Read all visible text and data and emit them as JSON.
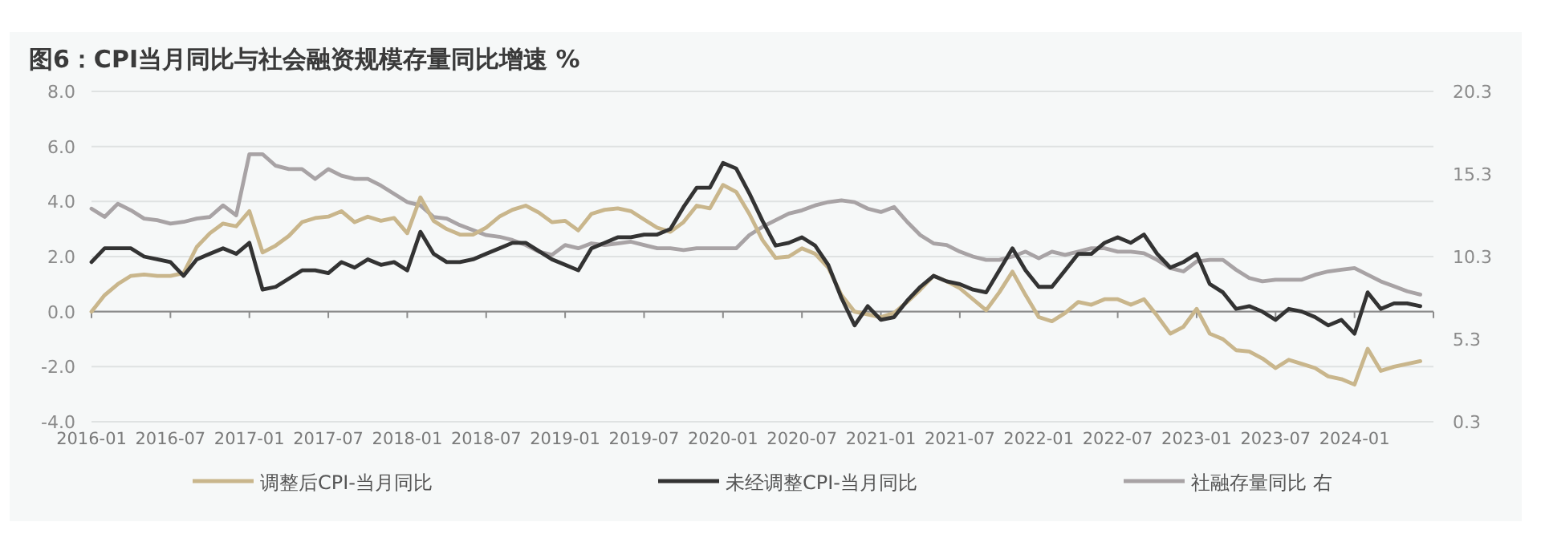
{
  "chart_data": {
    "type": "line",
    "title": "图6：CPI当月同比与社会融资规模存量同比增速 %",
    "x": [
      "2016-01",
      "2016-02",
      "2016-03",
      "2016-04",
      "2016-05",
      "2016-06",
      "2016-07",
      "2016-08",
      "2016-09",
      "2016-10",
      "2016-11",
      "2016-12",
      "2017-01",
      "2017-02",
      "2017-03",
      "2017-04",
      "2017-05",
      "2017-06",
      "2017-07",
      "2017-08",
      "2017-09",
      "2017-10",
      "2017-11",
      "2017-12",
      "2018-01",
      "2018-02",
      "2018-03",
      "2018-04",
      "2018-05",
      "2018-06",
      "2018-07",
      "2018-08",
      "2018-09",
      "2018-10",
      "2018-11",
      "2018-12",
      "2019-01",
      "2019-02",
      "2019-03",
      "2019-04",
      "2019-05",
      "2019-06",
      "2019-07",
      "2019-08",
      "2019-09",
      "2019-10",
      "2019-11",
      "2019-12",
      "2020-01",
      "2020-02",
      "2020-03",
      "2020-04",
      "2020-05",
      "2020-06",
      "2020-07",
      "2020-08",
      "2020-09",
      "2020-10",
      "2020-11",
      "2020-12",
      "2021-01",
      "2021-02",
      "2021-03",
      "2021-04",
      "2021-05",
      "2021-06",
      "2021-07",
      "2021-08",
      "2021-09",
      "2021-10",
      "2021-11",
      "2021-12",
      "2022-01",
      "2022-02",
      "2022-03",
      "2022-04",
      "2022-05",
      "2022-06",
      "2022-07",
      "2022-08",
      "2022-09",
      "2022-10",
      "2022-11",
      "2022-12",
      "2023-01",
      "2023-02",
      "2023-03",
      "2023-04",
      "2023-05",
      "2023-06",
      "2023-07",
      "2023-08",
      "2023-09",
      "2023-10",
      "2023-11",
      "2023-12",
      "2024-01",
      "2024-02",
      "2024-03",
      "2024-04",
      "2024-05",
      "2024-06"
    ],
    "series": [
      {
        "name": "调整后CPI-当月同比",
        "color": "#c9b68c",
        "values": [
          0.0,
          0.6,
          1.0,
          1.3,
          1.35,
          1.3,
          1.3,
          1.4,
          2.35,
          2.85,
          3.2,
          3.1,
          3.65,
          2.15,
          2.4,
          2.75,
          3.25,
          3.4,
          3.45,
          3.65,
          3.25,
          3.45,
          3.3,
          3.4,
          2.85,
          4.15,
          3.3,
          3.0,
          2.8,
          2.8,
          3.05,
          3.45,
          3.7,
          3.85,
          3.6,
          3.25,
          3.3,
          2.95,
          3.55,
          3.7,
          3.75,
          3.65,
          3.35,
          3.05,
          2.9,
          3.25,
          3.85,
          3.75,
          4.6,
          4.35,
          3.55,
          2.6,
          1.95,
          2.0,
          2.3,
          2.1,
          1.6,
          0.6,
          0.0,
          -0.1,
          -0.2,
          -0.05,
          0.35,
          0.8,
          1.3,
          1.1,
          0.85,
          0.45,
          0.05,
          0.7,
          1.45,
          0.6,
          -0.2,
          -0.35,
          -0.05,
          0.35,
          0.25,
          0.45,
          0.45,
          0.25,
          0.45,
          -0.15,
          -0.8,
          -0.55,
          0.1,
          -0.8,
          -1.0,
          -1.4,
          -1.45,
          -1.7,
          -2.05,
          -1.75,
          -1.9,
          -2.05,
          -2.35,
          -2.45,
          -2.65,
          -1.35,
          -2.15,
          -2.0,
          -1.9,
          -1.8
        ]
      },
      {
        "name": "未经调整CPI-当月同比",
        "color": "#333333",
        "values": [
          1.8,
          2.3,
          2.3,
          2.3,
          2.0,
          1.9,
          1.8,
          1.3,
          1.9,
          2.1,
          2.3,
          2.1,
          2.5,
          0.8,
          0.9,
          1.2,
          1.5,
          1.5,
          1.4,
          1.8,
          1.6,
          1.9,
          1.7,
          1.8,
          1.5,
          2.9,
          2.1,
          1.8,
          1.8,
          1.9,
          2.1,
          2.3,
          2.5,
          2.5,
          2.2,
          1.9,
          1.7,
          1.5,
          2.3,
          2.5,
          2.7,
          2.7,
          2.8,
          2.8,
          3.0,
          3.8,
          4.5,
          4.5,
          5.4,
          5.2,
          4.3,
          3.3,
          2.4,
          2.5,
          2.7,
          2.4,
          1.7,
          0.5,
          -0.5,
          0.2,
          -0.3,
          -0.2,
          0.4,
          0.9,
          1.3,
          1.1,
          1.0,
          0.8,
          0.7,
          1.5,
          2.3,
          1.5,
          0.9,
          0.9,
          1.5,
          2.1,
          2.1,
          2.5,
          2.7,
          2.5,
          2.8,
          2.1,
          1.6,
          1.8,
          2.1,
          1.0,
          0.7,
          0.1,
          0.2,
          0.0,
          -0.3,
          0.1,
          0.0,
          -0.2,
          -0.5,
          -0.3,
          -0.8,
          0.7,
          0.1,
          0.3,
          0.3,
          0.2
        ]
      },
      {
        "name": "社融存量同比 右",
        "color": "#a8a3a5",
        "axis": "y2",
        "values": [
          13.2,
          12.7,
          13.5,
          13.1,
          12.6,
          12.5,
          12.3,
          12.4,
          12.6,
          12.7,
          13.4,
          12.8,
          16.5,
          16.5,
          15.8,
          15.6,
          15.6,
          15.0,
          15.6,
          15.2,
          15.0,
          15.0,
          14.6,
          14.1,
          13.6,
          13.4,
          12.7,
          12.6,
          12.2,
          11.9,
          11.6,
          11.5,
          11.3,
          11.0,
          10.6,
          10.4,
          11.0,
          10.8,
          11.1,
          11.0,
          11.1,
          11.2,
          11.0,
          10.8,
          10.8,
          10.7,
          10.8,
          10.8,
          10.8,
          10.8,
          11.6,
          12.1,
          12.5,
          12.9,
          13.1,
          13.4,
          13.6,
          13.7,
          13.6,
          13.2,
          13.0,
          13.3,
          12.4,
          11.6,
          11.1,
          11.0,
          10.6,
          10.3,
          10.1,
          10.1,
          10.3,
          10.6,
          10.2,
          10.6,
          10.4,
          10.6,
          10.8,
          10.8,
          10.6,
          10.6,
          10.5,
          10.1,
          9.6,
          9.4,
          10.0,
          10.1,
          10.1,
          9.5,
          9.0,
          8.8,
          8.9,
          8.9,
          8.9,
          9.2,
          9.4,
          9.5,
          9.6,
          9.2,
          8.8,
          8.5,
          8.2,
          8.0
        ]
      }
    ],
    "xlim": [
      "2016-01",
      "2024-07"
    ],
    "xticks": [
      "2016-01",
      "2016-07",
      "2017-01",
      "2017-07",
      "2018-01",
      "2018-07",
      "2019-01",
      "2019-07",
      "2020-01",
      "2020-07",
      "2021-01",
      "2021-07",
      "2022-01",
      "2022-07",
      "2023-01",
      "2023-07",
      "2024-01",
      {
        "value": "2024-07",
        "label": null
      }
    ],
    "ylim": [
      -4,
      8
    ],
    "yticks": [
      {
        "value": 8,
        "label": "8.0"
      },
      {
        "value": 6,
        "label": "6.0"
      },
      {
        "value": 4,
        "label": "4.0"
      },
      {
        "value": 2,
        "label": "2.0"
      },
      {
        "value": 0,
        "label": "0.0"
      },
      {
        "value": -2,
        "label": "-2.0"
      },
      {
        "value": -4,
        "label": "-4.0"
      }
    ],
    "y2lim": [
      0.3,
      20.3
    ],
    "y2ticks": [
      20.3,
      15.3,
      10.3,
      5.3,
      0.3
    ],
    "grid": "y",
    "legend": "bottom",
    "marker": "none",
    "line_style": "solid"
  }
}
